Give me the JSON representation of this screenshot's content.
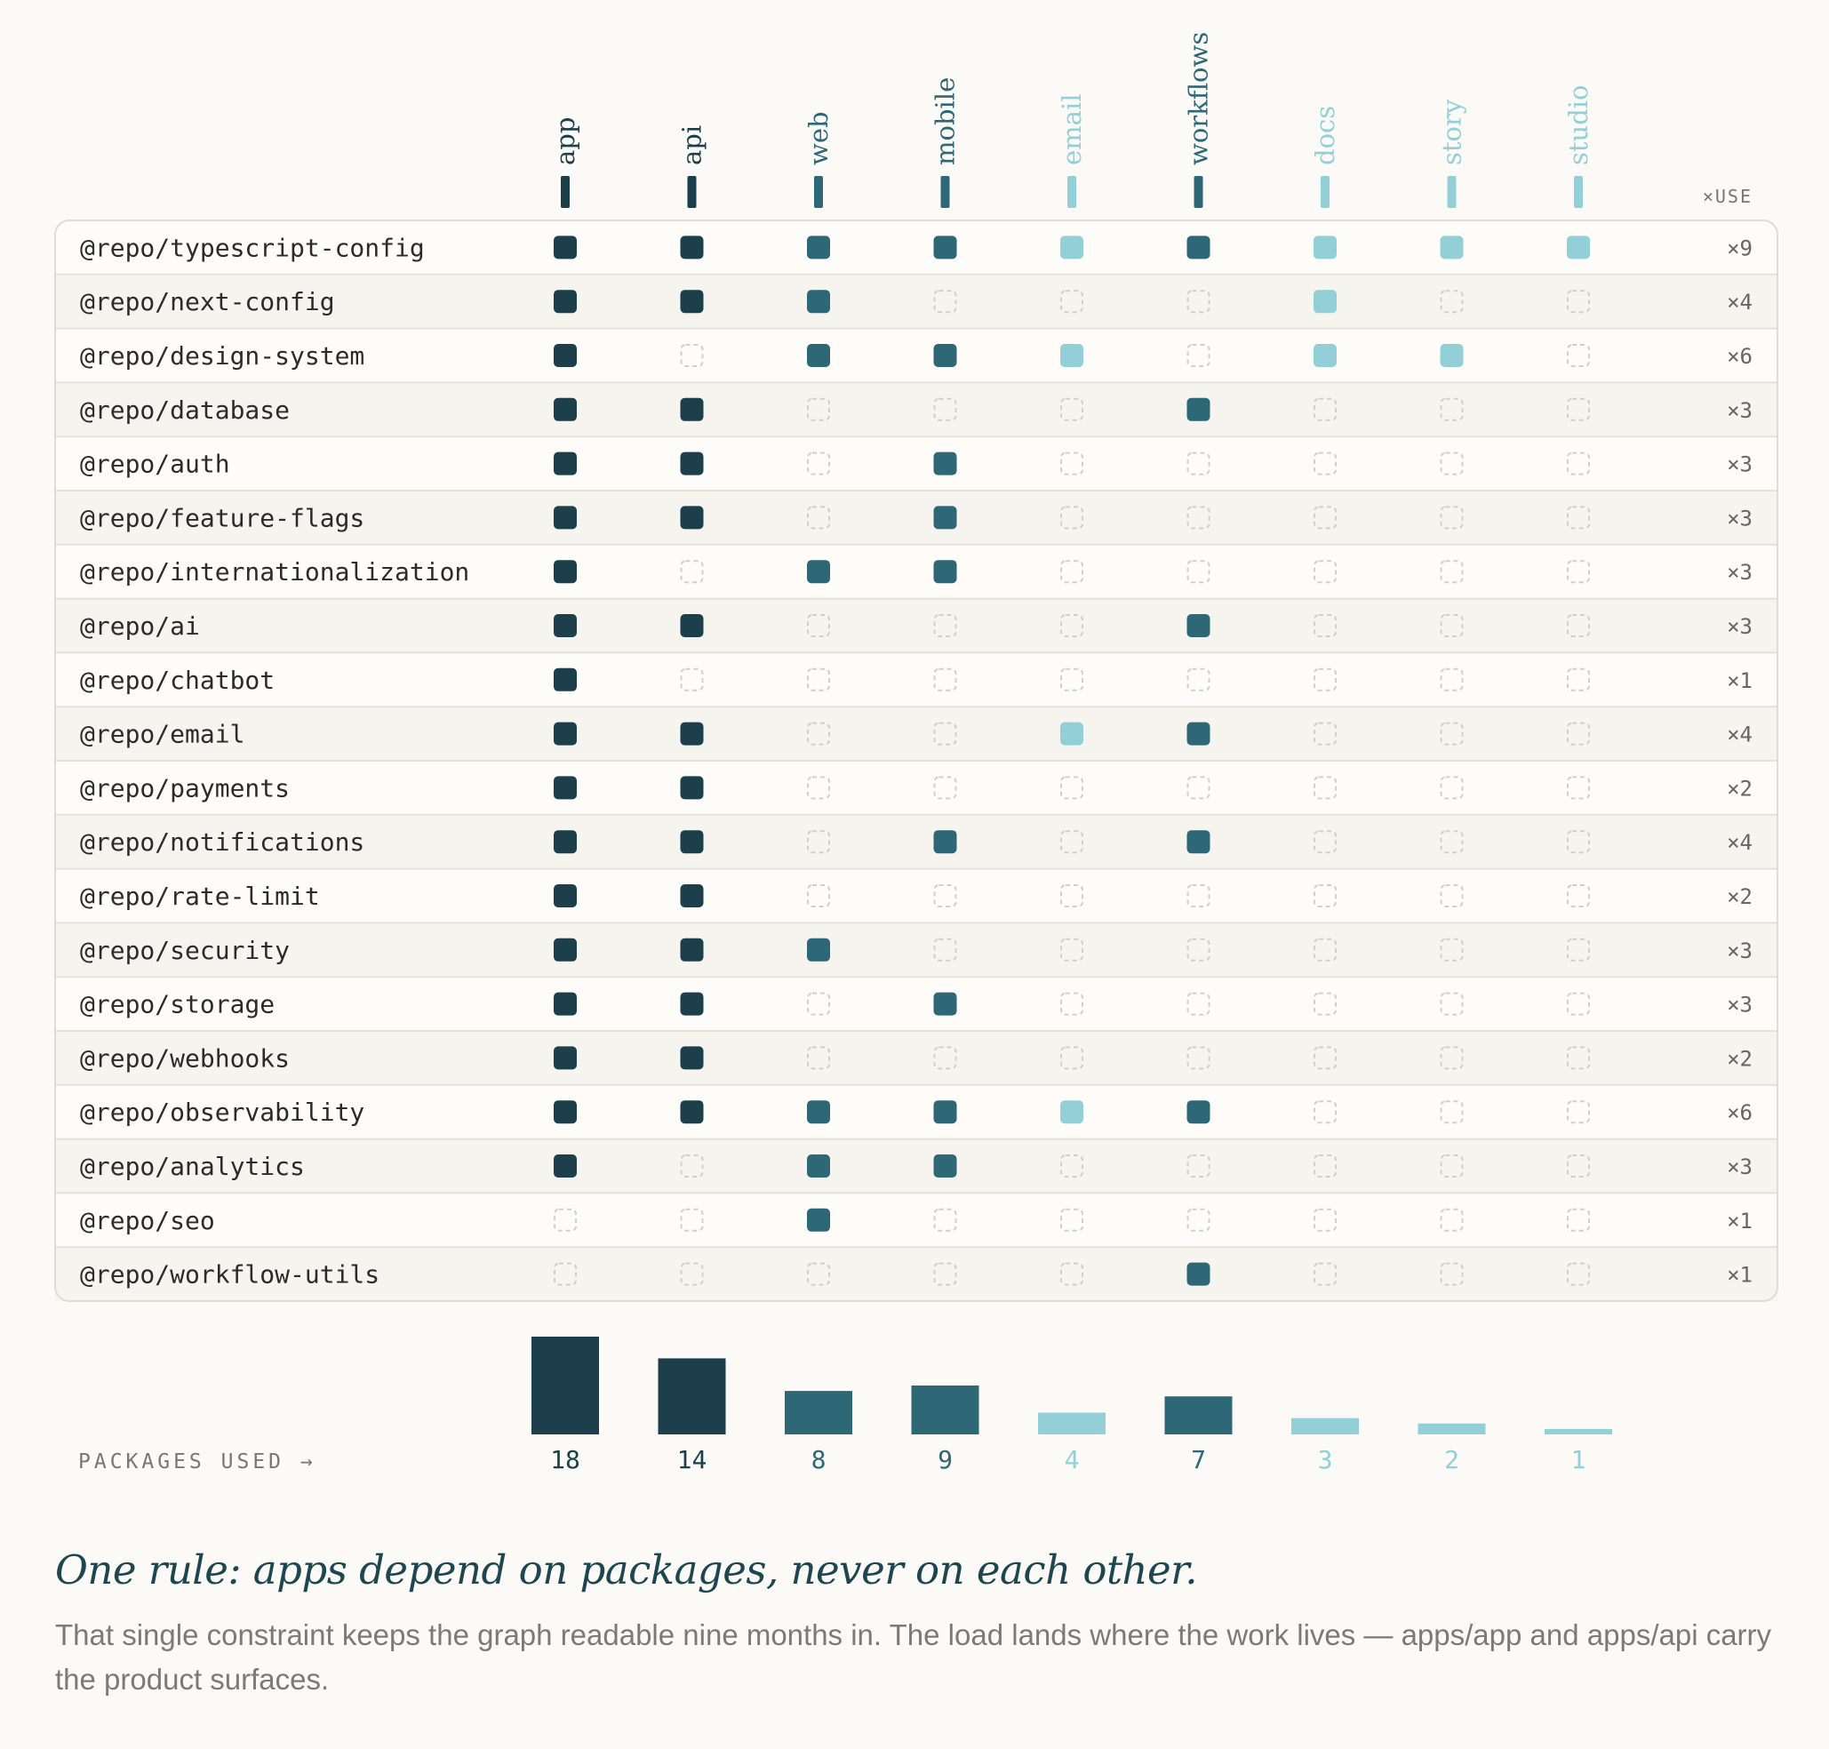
{
  "colors": {
    "dark": "#1c3f4b",
    "mid": "#2e6876",
    "light": "#93cfd6",
    "empty_stroke": "#cfcfcf",
    "text": "#2b2b2b",
    "muted": "#888888"
  },
  "chart_data": {
    "type": "heatmap",
    "use_header": "×USE",
    "columns": [
      {
        "name": "app",
        "tone": "dark"
      },
      {
        "name": "api",
        "tone": "dark"
      },
      {
        "name": "web",
        "tone": "mid"
      },
      {
        "name": "mobile",
        "tone": "mid"
      },
      {
        "name": "email",
        "tone": "light"
      },
      {
        "name": "workflows",
        "tone": "mid"
      },
      {
        "name": "docs",
        "tone": "light"
      },
      {
        "name": "story",
        "tone": "light"
      },
      {
        "name": "studio",
        "tone": "light"
      }
    ],
    "rows": [
      {
        "name": "@repo/typescript-config",
        "cells": [
          1,
          1,
          1,
          1,
          1,
          1,
          1,
          1,
          1
        ],
        "use": "×9"
      },
      {
        "name": "@repo/next-config",
        "cells": [
          1,
          1,
          1,
          0,
          0,
          0,
          1,
          0,
          0
        ],
        "use": "×4"
      },
      {
        "name": "@repo/design-system",
        "cells": [
          1,
          0,
          1,
          1,
          1,
          0,
          1,
          1,
          0
        ],
        "use": "×6"
      },
      {
        "name": "@repo/database",
        "cells": [
          1,
          1,
          0,
          0,
          0,
          1,
          0,
          0,
          0
        ],
        "use": "×3"
      },
      {
        "name": "@repo/auth",
        "cells": [
          1,
          1,
          0,
          1,
          0,
          0,
          0,
          0,
          0
        ],
        "use": "×3"
      },
      {
        "name": "@repo/feature-flags",
        "cells": [
          1,
          1,
          0,
          1,
          0,
          0,
          0,
          0,
          0
        ],
        "use": "×3"
      },
      {
        "name": "@repo/internationalization",
        "cells": [
          1,
          0,
          1,
          1,
          0,
          0,
          0,
          0,
          0
        ],
        "use": "×3"
      },
      {
        "name": "@repo/ai",
        "cells": [
          1,
          1,
          0,
          0,
          0,
          1,
          0,
          0,
          0
        ],
        "use": "×3"
      },
      {
        "name": "@repo/chatbot",
        "cells": [
          1,
          0,
          0,
          0,
          0,
          0,
          0,
          0,
          0
        ],
        "use": "×1"
      },
      {
        "name": "@repo/email",
        "cells": [
          1,
          1,
          0,
          0,
          1,
          1,
          0,
          0,
          0
        ],
        "use": "×4"
      },
      {
        "name": "@repo/payments",
        "cells": [
          1,
          1,
          0,
          0,
          0,
          0,
          0,
          0,
          0
        ],
        "use": "×2"
      },
      {
        "name": "@repo/notifications",
        "cells": [
          1,
          1,
          0,
          1,
          0,
          1,
          0,
          0,
          0
        ],
        "use": "×4"
      },
      {
        "name": "@repo/rate-limit",
        "cells": [
          1,
          1,
          0,
          0,
          0,
          0,
          0,
          0,
          0
        ],
        "use": "×2"
      },
      {
        "name": "@repo/security",
        "cells": [
          1,
          1,
          1,
          0,
          0,
          0,
          0,
          0,
          0
        ],
        "use": "×3"
      },
      {
        "name": "@repo/storage",
        "cells": [
          1,
          1,
          0,
          1,
          0,
          0,
          0,
          0,
          0
        ],
        "use": "×3"
      },
      {
        "name": "@repo/webhooks",
        "cells": [
          1,
          1,
          0,
          0,
          0,
          0,
          0,
          0,
          0
        ],
        "use": "×2"
      },
      {
        "name": "@repo/observability",
        "cells": [
          1,
          1,
          1,
          1,
          1,
          1,
          0,
          0,
          0
        ],
        "use": "×6"
      },
      {
        "name": "@repo/analytics",
        "cells": [
          1,
          0,
          1,
          1,
          0,
          0,
          0,
          0,
          0
        ],
        "use": "×3"
      },
      {
        "name": "@repo/seo",
        "cells": [
          0,
          0,
          1,
          0,
          0,
          0,
          0,
          0,
          0
        ],
        "use": "×1"
      },
      {
        "name": "@repo/workflow-utils",
        "cells": [
          0,
          0,
          0,
          0,
          0,
          1,
          0,
          0,
          0
        ],
        "use": "×1"
      }
    ],
    "packages_used_label": "PACKAGES USED →",
    "packages_used": [
      18,
      14,
      8,
      9,
      4,
      7,
      3,
      2,
      1
    ]
  },
  "caption": {
    "title": "One rule: apps depend on packages, never on each other.",
    "body": "That single constraint keeps the graph readable nine months in. The load lands where the work lives — apps/app and apps/api carry the product surfaces."
  }
}
